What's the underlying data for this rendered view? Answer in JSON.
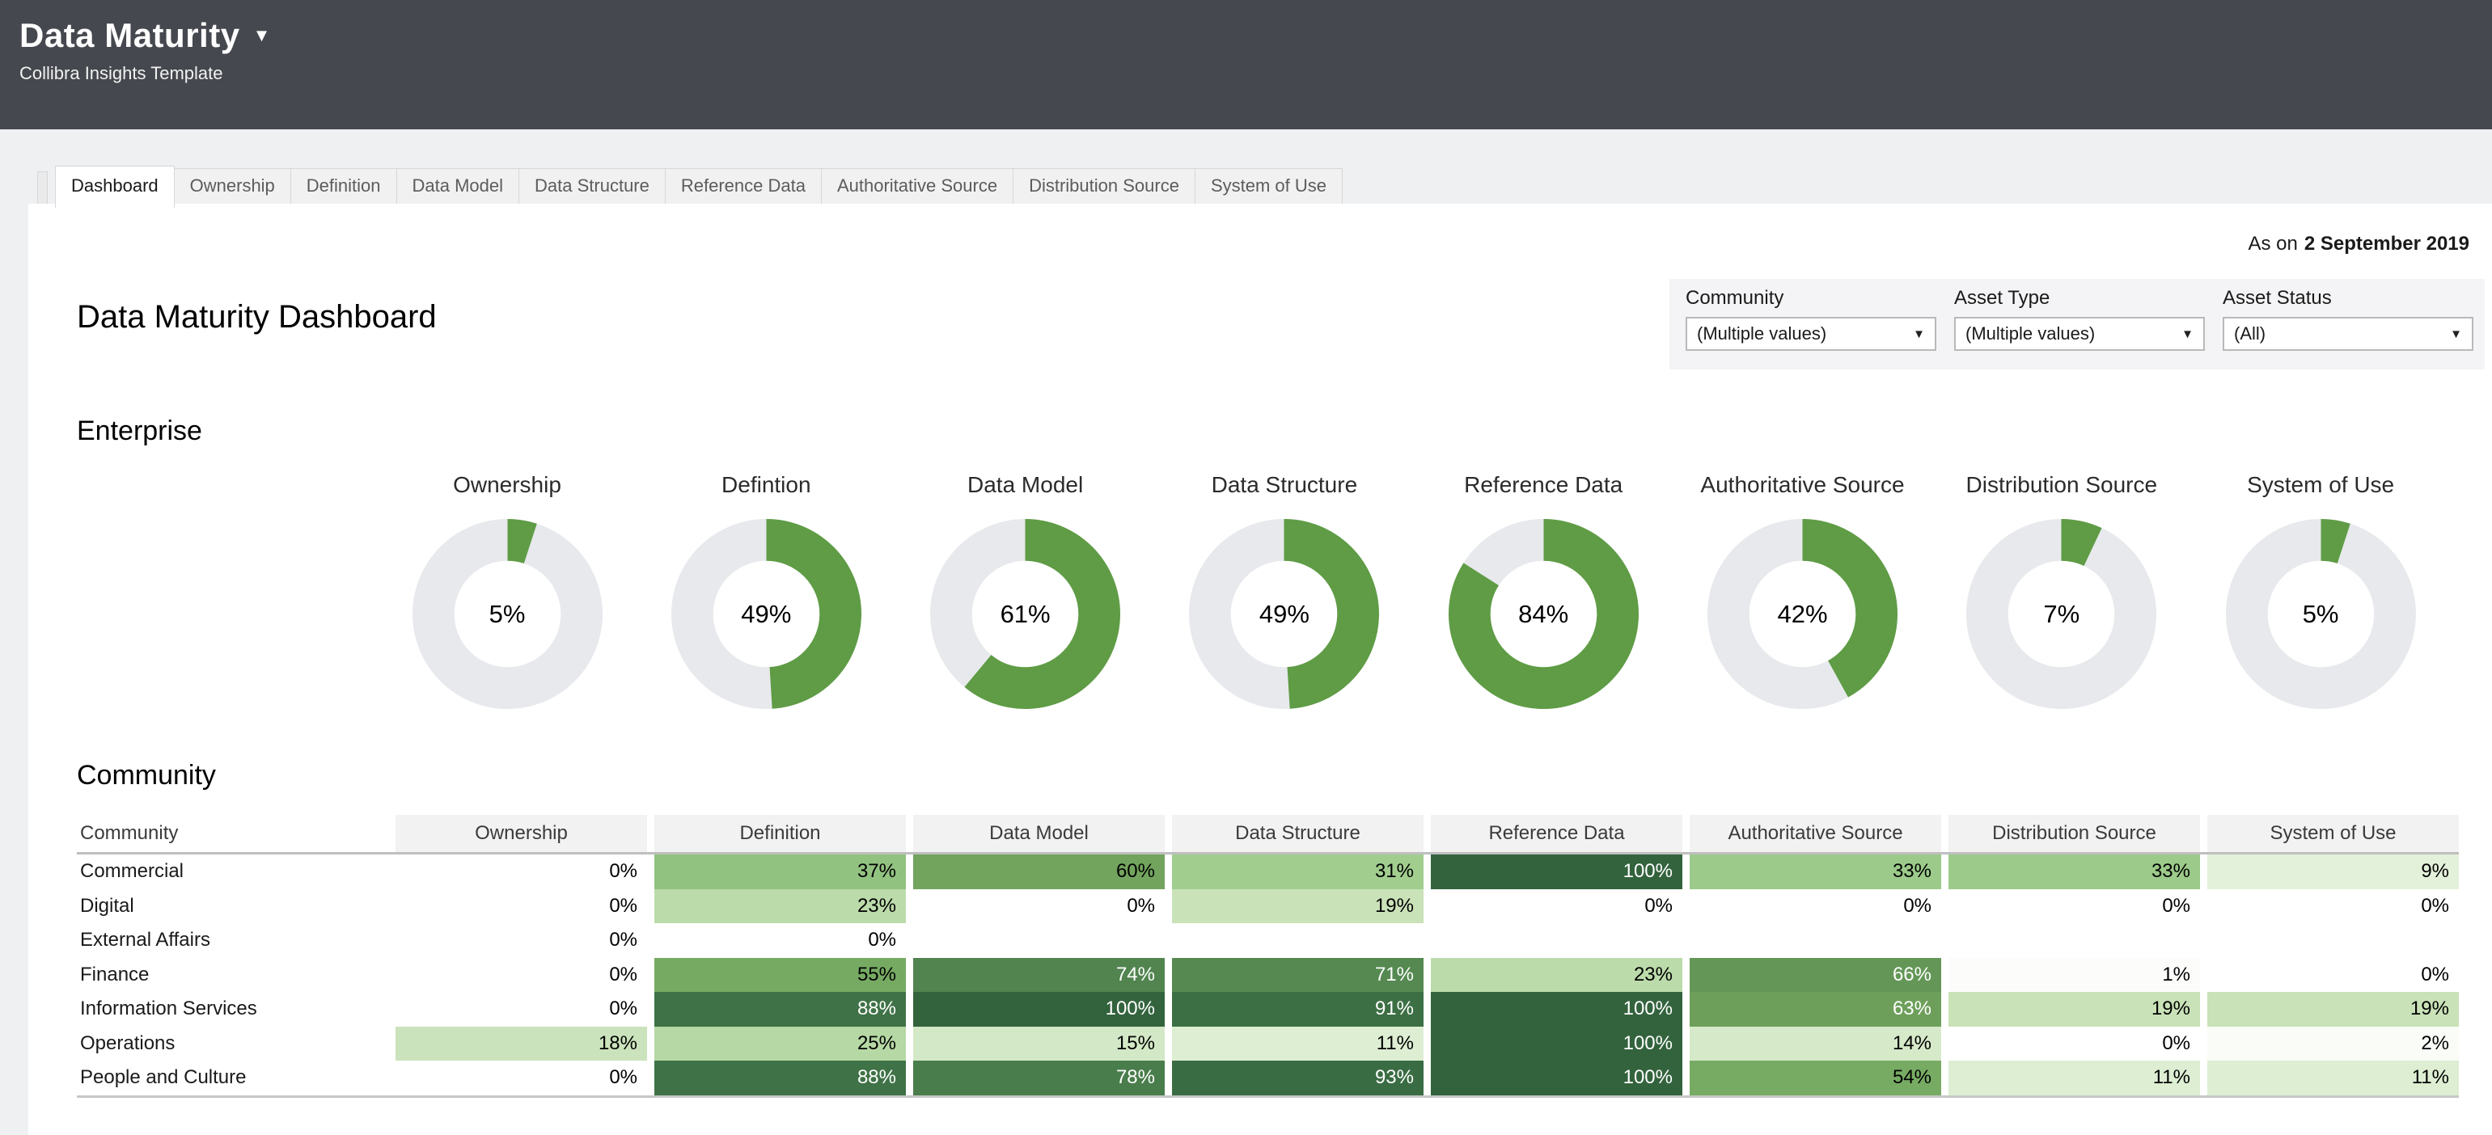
{
  "header": {
    "title": "Data Maturity",
    "subtitle": "Collibra Insights Template"
  },
  "icons": {
    "title_caret": "▼",
    "dropdown_caret": "▼"
  },
  "tabs": [
    {
      "label": "Dashboard",
      "active": true
    },
    {
      "label": "Ownership",
      "active": false
    },
    {
      "label": "Definition",
      "active": false
    },
    {
      "label": "Data Model",
      "active": false
    },
    {
      "label": "Data Structure",
      "active": false
    },
    {
      "label": "Reference Data",
      "active": false
    },
    {
      "label": "Authoritative Source",
      "active": false
    },
    {
      "label": "Distribution Source",
      "active": false
    },
    {
      "label": "System of Use",
      "active": false
    }
  ],
  "as_of": {
    "prefix": "As on",
    "date": "2 September 2019"
  },
  "page_title": "Data Maturity Dashboard",
  "filters": [
    {
      "label": "Community",
      "value": "(Multiple values)"
    },
    {
      "label": "Asset Type",
      "value": "(Multiple values)"
    },
    {
      "label": "Asset Status",
      "value": "(All)"
    }
  ],
  "chart_data": [
    {
      "type": "pie",
      "subtype": "donut-row",
      "title": "Enterprise",
      "series": [
        {
          "label": "Ownership",
          "value": 5
        },
        {
          "label": "Defintion",
          "value": 49
        },
        {
          "label": "Data Model",
          "value": 61
        },
        {
          "label": "Data Structure",
          "value": 49
        },
        {
          "label": "Reference Data",
          "value": 84
        },
        {
          "label": "Authoritative Source",
          "value": 42
        },
        {
          "label": "Distribution Source",
          "value": 7
        },
        {
          "label": "System of Use",
          "value": 5
        }
      ],
      "value_format": "percent"
    },
    {
      "type": "heatmap",
      "title": "Community",
      "columns": [
        "Community",
        "Ownership",
        "Definition",
        "Data Model",
        "Data Structure",
        "Reference Data",
        "Authoritative Source",
        "Distribution Source",
        "System of Use"
      ],
      "rows": [
        {
          "name": "Commercial",
          "values": [
            0,
            37,
            60,
            31,
            100,
            33,
            33,
            9
          ]
        },
        {
          "name": "Digital",
          "values": [
            0,
            23,
            0,
            19,
            0,
            0,
            0,
            0
          ]
        },
        {
          "name": "External Affairs",
          "values": [
            0,
            0,
            null,
            null,
            null,
            null,
            null,
            null
          ]
        },
        {
          "name": "Finance",
          "values": [
            0,
            55,
            74,
            71,
            23,
            66,
            1,
            0
          ]
        },
        {
          "name": "Information Services",
          "values": [
            0,
            88,
            100,
            91,
            100,
            63,
            19,
            19
          ]
        },
        {
          "name": "Operations",
          "values": [
            18,
            25,
            15,
            11,
            100,
            14,
            0,
            2
          ]
        },
        {
          "name": "People and Culture",
          "values": [
            0,
            88,
            78,
            93,
            100,
            54,
            11,
            11
          ]
        }
      ],
      "value_format": "percent"
    }
  ],
  "color_scale": {
    "stops": [
      [
        0,
        "#ffffff"
      ],
      [
        10,
        "#e0efd6"
      ],
      [
        20,
        "#c6e0b5"
      ],
      [
        30,
        "#a4d092"
      ],
      [
        40,
        "#8abc78"
      ],
      [
        55,
        "#76aa62"
      ],
      [
        62,
        "#70a25b"
      ],
      [
        70,
        "#578b52"
      ],
      [
        80,
        "#47794a"
      ],
      [
        90,
        "#3d7045"
      ],
      [
        100,
        "#33633d"
      ]
    ],
    "white_text_above": 60
  },
  "colors": {
    "topbar_bg": "#45484e",
    "band_bg": "#eef0f2",
    "accent_green": "#5f9c45",
    "donut_track": "#e7e9ec",
    "panel_bg": "#f4f4f6",
    "header_cell_bg": "#f2f2f2",
    "tab_inactive_bg": "#f1f1f1",
    "border_gray": "#d7d7d7"
  }
}
